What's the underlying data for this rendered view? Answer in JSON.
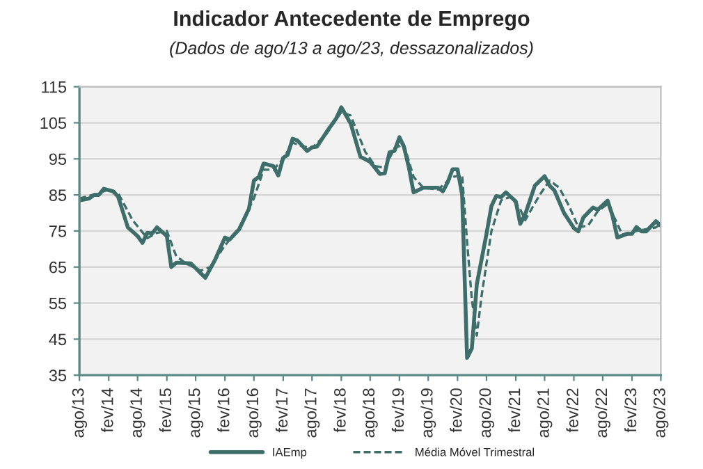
{
  "chart_data": {
    "type": "line",
    "title": "Indicador Antecedente de Emprego",
    "subtitle": "(Dados de ago/13 a ago/23, dessazonalizados)",
    "series": [
      {
        "name": "IAEmp",
        "color": "#3d6e69",
        "line_style": "solid",
        "x": [
          "2013-08",
          "2013-10",
          "2013-11",
          "2013-12",
          "2014-01",
          "2014-03",
          "2014-04",
          "2014-06",
          "2014-08",
          "2014-09",
          "2014-10",
          "2014-11",
          "2014-12",
          "2015-02",
          "2015-03",
          "2015-04",
          "2015-07",
          "2015-08",
          "2015-10",
          "2015-12",
          "2016-02",
          "2016-03",
          "2016-05",
          "2016-07",
          "2016-08",
          "2016-09",
          "2016-10",
          "2016-12",
          "2017-01",
          "2017-02",
          "2017-03",
          "2017-04",
          "2017-05",
          "2017-07",
          "2017-08",
          "2017-09",
          "2017-11",
          "2018-01",
          "2018-02",
          "2018-04",
          "2018-06",
          "2018-08",
          "2018-10",
          "2018-11",
          "2018-12",
          "2019-01",
          "2019-02",
          "2019-03",
          "2019-04",
          "2019-05",
          "2019-07",
          "2019-10",
          "2019-11",
          "2019-12",
          "2020-01",
          "2020-02",
          "2020-03",
          "2020-04",
          "2020-05",
          "2020-06",
          "2020-08",
          "2020-09",
          "2020-10",
          "2020-11",
          "2020-12",
          "2021-02",
          "2021-03",
          "2021-04",
          "2021-06",
          "2021-08",
          "2021-09",
          "2021-10",
          "2021-12",
          "2022-02",
          "2022-03",
          "2022-04",
          "2022-06",
          "2022-07",
          "2022-09",
          "2022-10",
          "2022-11",
          "2023-01",
          "2023-02",
          "2023-03",
          "2023-04",
          "2023-05",
          "2023-07",
          "2023-08"
        ],
        "values": [
          83.5,
          84,
          85,
          85,
          86.7,
          86,
          84.5,
          76,
          73.6,
          71.7,
          74.5,
          74.3,
          76,
          73.6,
          65,
          66.2,
          66,
          64.7,
          62,
          67,
          73.2,
          72.6,
          75.5,
          81.2,
          89,
          90,
          93.7,
          93,
          90.4,
          95.3,
          96.1,
          100.6,
          100.1,
          97.2,
          98.2,
          98.4,
          102.5,
          106.3,
          109.3,
          104.8,
          95.6,
          94.2,
          90.8,
          91,
          96.8,
          97.2,
          101,
          98.4,
          92.7,
          85.7,
          87,
          87,
          86,
          88.5,
          92.1,
          92.1,
          85,
          39.8,
          42.4,
          60.2,
          74.2,
          81.9,
          84.7,
          84.4,
          85.7,
          83.2,
          77,
          79.6,
          87.6,
          90.2,
          87.6,
          86.3,
          80,
          75.8,
          74.9,
          78.7,
          81.5,
          80.9,
          83.4,
          79.3,
          73.2,
          74.2,
          74.2,
          76.1,
          74.9,
          74.9,
          77.7,
          76.5
        ]
      },
      {
        "name": "Média Móvel Trimestral",
        "color": "#3d6e69",
        "line_style": "dashed",
        "x": [
          "2013-08",
          "2013-12",
          "2014-02",
          "2014-04",
          "2014-07",
          "2014-10",
          "2014-12",
          "2015-02",
          "2015-04",
          "2015-06",
          "2015-09",
          "2015-11",
          "2016-02",
          "2016-05",
          "2016-08",
          "2016-10",
          "2016-12",
          "2017-02",
          "2017-04",
          "2017-06",
          "2017-08",
          "2017-11",
          "2018-02",
          "2018-04",
          "2018-07",
          "2018-09",
          "2018-11",
          "2019-01",
          "2019-03",
          "2019-05",
          "2019-07",
          "2019-10",
          "2020-01",
          "2020-03",
          "2020-04",
          "2020-05",
          "2020-06",
          "2020-07",
          "2020-09",
          "2020-11",
          "2021-01",
          "2021-03",
          "2021-04",
          "2021-07",
          "2021-09",
          "2021-11",
          "2022-01",
          "2022-03",
          "2022-05",
          "2022-07",
          "2022-09",
          "2022-11",
          "2022-12",
          "2023-03",
          "2023-05",
          "2023-07",
          "2023-08"
        ],
        "values": [
          84,
          85.5,
          86.5,
          85.5,
          78,
          73,
          74.5,
          75,
          68,
          66,
          64,
          65,
          71,
          76,
          84,
          92,
          92,
          95,
          99.5,
          98.5,
          98,
          102,
          108,
          107,
          97,
          93,
          92.5,
          98,
          99,
          90,
          87,
          86.5,
          90,
          90.5,
          72,
          56,
          46,
          57,
          75,
          83.5,
          84.5,
          81,
          78,
          85,
          89,
          87,
          82,
          76,
          76.5,
          80.5,
          82.5,
          77,
          74,
          75,
          75.5,
          76,
          77
        ]
      }
    ],
    "xlim": [
      "2013-08",
      "2023-08"
    ],
    "xticks": [
      {
        "value": "2013-08",
        "label": "ago/13"
      },
      {
        "value": "2014-02",
        "label": "fev/14"
      },
      {
        "value": "2014-08",
        "label": "ago/14"
      },
      {
        "value": "2015-02",
        "label": "fev/15"
      },
      {
        "value": "2015-08",
        "label": "ago/15"
      },
      {
        "value": "2016-02",
        "label": "fev/16"
      },
      {
        "value": "2016-08",
        "label": "ago/16"
      },
      {
        "value": "2017-02",
        "label": "fev/17"
      },
      {
        "value": "2017-08",
        "label": "ago/17"
      },
      {
        "value": "2018-02",
        "label": "fev/18"
      },
      {
        "value": "2018-08",
        "label": "ago/18"
      },
      {
        "value": "2019-02",
        "label": "fev/19"
      },
      {
        "value": "2019-08",
        "label": "ago/19"
      },
      {
        "value": "2020-02",
        "label": "fev/20"
      },
      {
        "value": "2020-08",
        "label": "ago/20"
      },
      {
        "value": "2021-02",
        "label": "fev/21"
      },
      {
        "value": "2021-08",
        "label": "ago/21"
      },
      {
        "value": "2022-02",
        "label": "fev/22"
      },
      {
        "value": "2022-08",
        "label": "ago/22"
      },
      {
        "value": "2023-02",
        "label": "fev/23"
      },
      {
        "value": "2023-08",
        "label": "ago/23"
      }
    ],
    "ylim": [
      35,
      115
    ],
    "yticks": [
      35,
      45,
      55,
      65,
      75,
      85,
      95,
      105,
      115
    ],
    "grid": "y",
    "legend": "bottom"
  }
}
